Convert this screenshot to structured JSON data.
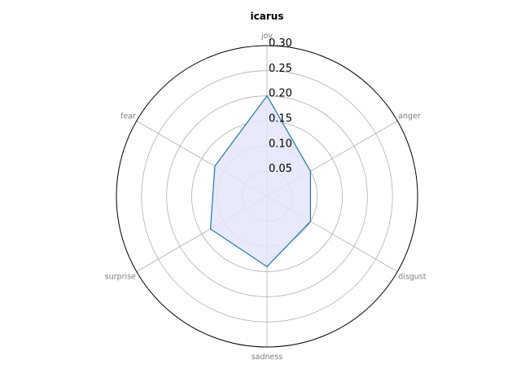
{
  "chart_data": {
    "type": "radar",
    "title": "icarus",
    "axes": [
      "joy",
      "anger",
      "disgust",
      "sadness",
      "surprise",
      "fear"
    ],
    "series": [
      {
        "values": [
          0.2,
          0.1,
          0.1,
          0.14,
          0.13,
          0.12
        ]
      }
    ],
    "r_ticks": [
      "0.05",
      "0.10",
      "0.15",
      "0.20",
      "0.25",
      "0.30"
    ],
    "rlim": [
      0,
      0.3
    ],
    "grid": true,
    "colors": {
      "line": "#1f77b4",
      "fill": "#e5e5fc",
      "grid": "#b0b0b0",
      "frame": "#000000"
    }
  }
}
